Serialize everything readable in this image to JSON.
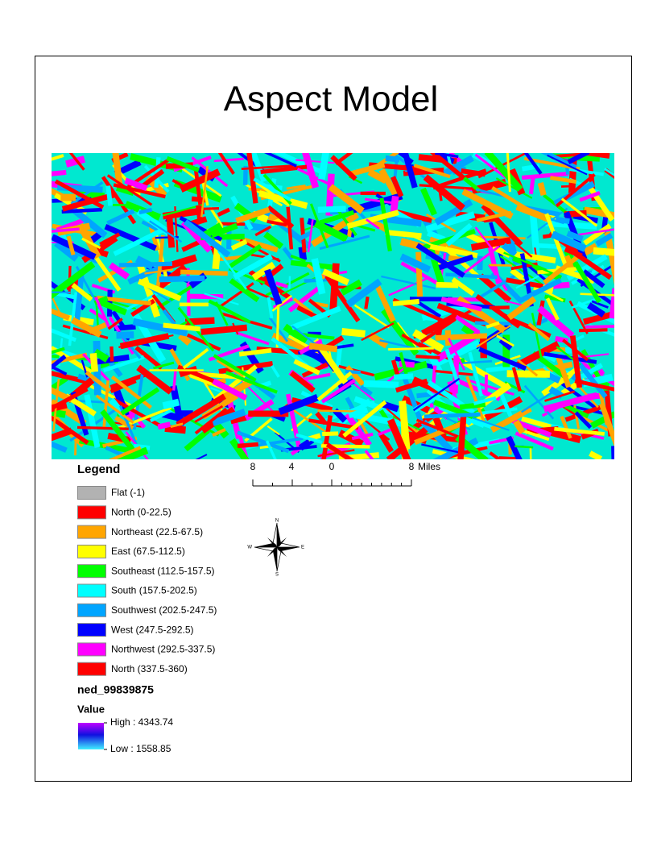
{
  "title": "Aspect Model",
  "legend": {
    "title": "Legend",
    "items": [
      {
        "label": "Flat (-1)",
        "color": "#b2b2b2"
      },
      {
        "label": "North (0-22.5)",
        "color": "#ff0000"
      },
      {
        "label": "Northeast (22.5-67.5)",
        "color": "#ffa500"
      },
      {
        "label": "East (67.5-112.5)",
        "color": "#ffff00"
      },
      {
        "label": "Southeast (112.5-157.5)",
        "color": "#00ff00"
      },
      {
        "label": "South (157.5-202.5)",
        "color": "#00ffff"
      },
      {
        "label": "Southwest (202.5-247.5)",
        "color": "#00a5ff"
      },
      {
        "label": "West (247.5-292.5)",
        "color": "#0000ff"
      },
      {
        "label": "Northwest (292.5-337.5)",
        "color": "#ff00ff"
      },
      {
        "label": "North (337.5-360)",
        "color": "#ff0000"
      }
    ]
  },
  "layer": {
    "name": "ned_99839875",
    "field": "Value",
    "high_label": "High : 4343.74",
    "low_label": "Low : 1558.85"
  },
  "scale_bar": {
    "labels": [
      8,
      4,
      0,
      8
    ],
    "unit": "Miles"
  },
  "compass": {
    "n": "N",
    "e": "E",
    "s": "S",
    "w": "W"
  }
}
